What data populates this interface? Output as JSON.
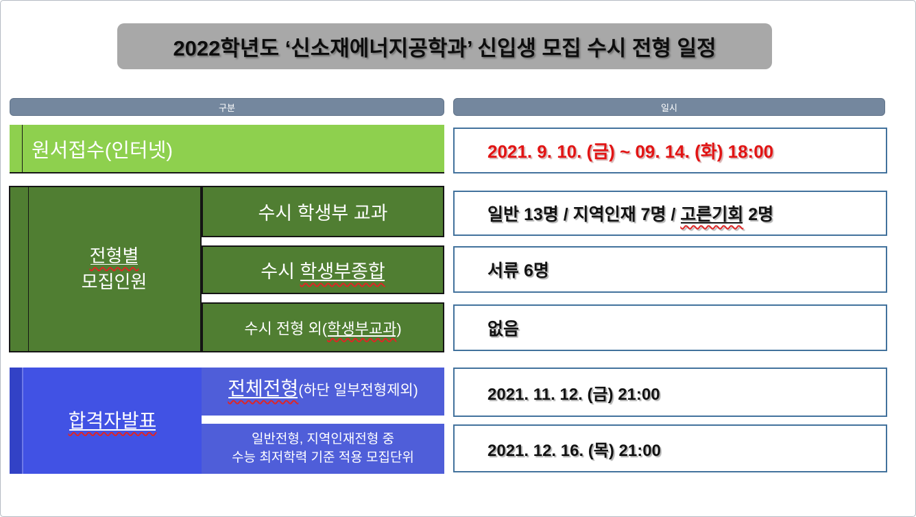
{
  "title": "2022학년도 ‘신소재에너지공학과’ 신입생 모집 수시 전형 일정",
  "columns": {
    "left": "구분",
    "right": "일시"
  },
  "colors": {
    "title_bg": "#a8a8a8",
    "header_bar": "#74879e",
    "green_light": "#8ed04e",
    "green_dark": "#507e32",
    "blue_main": "#4152e4",
    "blue_sub": "#4f5ed9",
    "value_border": "#41719c",
    "date_red": "#e21414"
  },
  "rows": {
    "application": {
      "label": "원서접수(인터넷)",
      "value": "2021. 9. 10. (금) ~ 09. 14. (화) 18:00"
    },
    "quota": {
      "group_line1": "전형별",
      "group_line2": "모집인원",
      "items": [
        {
          "label_pre": "수시 학생부 교과",
          "label_flag": "",
          "label_suf": "",
          "value_pre": "일반 13명 / 지역인재 7명 / ",
          "value_flag": "고른기회",
          "value_suf": " 2명"
        },
        {
          "label_pre": "수시 ",
          "label_flag": "학생부종합",
          "label_suf": "",
          "value_pre": "서류 6명",
          "value_flag": "",
          "value_suf": ""
        },
        {
          "label_pre": "수시 전형 외(",
          "label_flag": "학생부교과",
          "label_suf": ")",
          "value_pre": "없음",
          "value_flag": "",
          "value_suf": ""
        }
      ]
    },
    "announcement": {
      "group_label": "합격자발표",
      "items": [
        {
          "label_flag": "전체전형",
          "label_suffix": "(하단 일부전형제외)",
          "value": "2021. 11. 12. (금) 21:00"
        },
        {
          "label_line1": "일반전형, 지역인재전형 중",
          "label_line2": "수능 최저학력 기준 적용 모집단위",
          "value": "2021. 12. 16. (목) 21:00"
        }
      ]
    }
  }
}
